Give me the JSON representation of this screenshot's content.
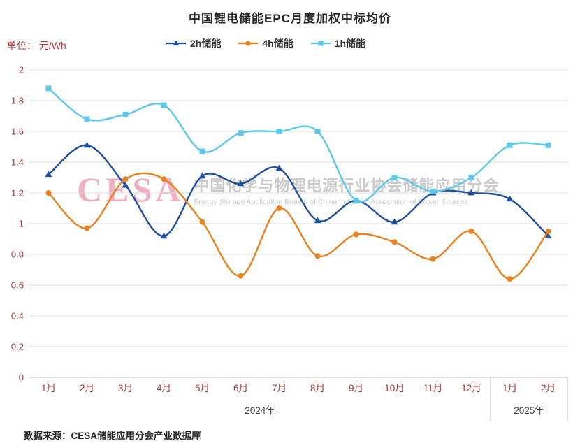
{
  "title": "中国锂电储能EPC月度加权中标均价",
  "unit_label": "单位： 元/Wh",
  "source": "数据来源：CESA储能应用分会产业数据库",
  "watermark": {
    "logo": "CESA",
    "cn": "中国化学与物理电源行业协会储能应用分会",
    "en": "Energy Storage Application Branch of China Industrial Association of Power Sources"
  },
  "colors": {
    "axis_label": "#9c3a36",
    "grid": "#dcdcdc",
    "axis_line": "#bfbfbf",
    "year_label": "#404040",
    "title_text": "#262626"
  },
  "chart_data": {
    "type": "line",
    "title": "中国锂电储能EPC月度加权中标均价",
    "ylabel": "元/Wh",
    "ylim": [
      0,
      2
    ],
    "ytick_step": 0.2,
    "grid": true,
    "legend_position": "top",
    "categories": [
      "1月",
      "2月",
      "3月",
      "4月",
      "5月",
      "6月",
      "7月",
      "8月",
      "9月",
      "10月",
      "11月",
      "12月",
      "1月",
      "2月"
    ],
    "year_groups": [
      {
        "label": "2024年",
        "start": 0,
        "end": 11
      },
      {
        "label": "2025年",
        "start": 12,
        "end": 13
      }
    ],
    "series": [
      {
        "key": "2h",
        "name": "2h储能",
        "color": "#1f4e9f",
        "marker": "triangle",
        "values": [
          1.32,
          1.51,
          1.25,
          0.92,
          1.31,
          1.26,
          1.36,
          1.02,
          1.15,
          1.01,
          1.2,
          1.2,
          1.16,
          0.92
        ]
      },
      {
        "key": "4h",
        "name": "4h储能",
        "color": "#e8821e",
        "marker": "circle",
        "values": [
          1.2,
          0.97,
          1.29,
          1.29,
          1.01,
          0.66,
          1.1,
          0.79,
          0.93,
          0.88,
          0.77,
          0.95,
          0.64,
          0.95
        ]
      },
      {
        "key": "1h",
        "name": "1h储能",
        "color": "#5ec8ea",
        "marker": "square",
        "values": [
          1.88,
          1.68,
          1.71,
          1.77,
          1.47,
          1.59,
          1.6,
          1.6,
          1.15,
          1.3,
          1.21,
          1.3,
          1.51,
          1.51
        ]
      }
    ]
  }
}
